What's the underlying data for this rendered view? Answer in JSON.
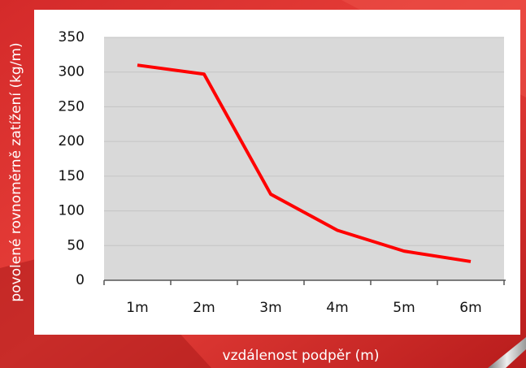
{
  "chart_data": {
    "type": "line",
    "x_label": "vzdálenost podpěr (m)",
    "y_label": "povolené rovnoměrně zatížení (kg/m)",
    "categories": [
      "1m",
      "2m",
      "3m",
      "4m",
      "5m",
      "6m"
    ],
    "values": [
      310,
      297,
      124,
      72,
      42,
      27
    ],
    "color": "#ff0000",
    "ylim": [
      0,
      350
    ],
    "yticks": [
      0,
      50,
      100,
      150,
      200,
      250,
      300,
      350
    ],
    "grid": true
  }
}
